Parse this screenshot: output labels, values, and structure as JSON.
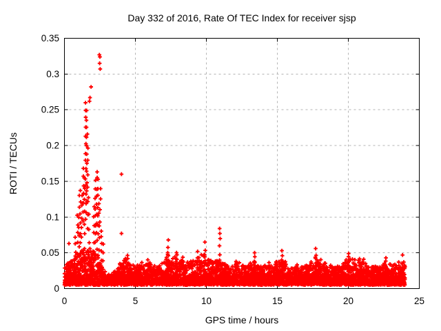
{
  "chart_data": {
    "type": "scatter",
    "title": "Day 332 of 2016, Rate Of TEC Index for receiver sjsp",
    "xlabel": "GPS time / hours",
    "ylabel": "ROTI / TECUs",
    "xlim": [
      0,
      25
    ],
    "ylim": [
      0,
      0.35
    ],
    "xticks": [
      0,
      5,
      10,
      15,
      20,
      25
    ],
    "xtick_labels": [
      "0",
      "5",
      "10",
      "15",
      "20",
      "25"
    ],
    "yticks": [
      0,
      0.05,
      0.1,
      0.15,
      0.2,
      0.25,
      0.3,
      0.35
    ],
    "ytick_labels": [
      "0",
      "0.05",
      "0.1",
      "0.15",
      "0.2",
      "0.25",
      "0.3",
      "0.35"
    ],
    "grid": true,
    "legend": null,
    "marker": "plus",
    "marker_size_px": 7,
    "colors": {
      "marker": "#ff0000",
      "grid": "#b3b3b3",
      "axis": "#000000",
      "text": "#000000",
      "background": "#ffffff"
    },
    "seed": 2016332,
    "series": [
      {
        "name": "ROTI",
        "observed_x_range": [
          0,
          24
        ],
        "baseline_band": {
          "points_per_hour": 210,
          "y_floor": 0.005,
          "shape_power": 2.8
        },
        "envelope_max": [
          [
            0,
            0.032
          ],
          [
            0.6,
            0.038
          ],
          [
            1.0,
            0.05
          ],
          [
            1.6,
            0.055
          ],
          [
            2.3,
            0.05
          ],
          [
            2.7,
            0.025
          ],
          [
            3.1,
            0.018
          ],
          [
            3.6,
            0.025
          ],
          [
            4.3,
            0.04
          ],
          [
            4.9,
            0.03
          ],
          [
            5.5,
            0.035
          ],
          [
            6.0,
            0.035
          ],
          [
            6.6,
            0.028
          ],
          [
            7.3,
            0.045
          ],
          [
            8.0,
            0.04
          ],
          [
            8.6,
            0.035
          ],
          [
            9.2,
            0.04
          ],
          [
            9.8,
            0.045
          ],
          [
            10.4,
            0.035
          ],
          [
            11.0,
            0.04
          ],
          [
            11.6,
            0.026
          ],
          [
            12.2,
            0.035
          ],
          [
            12.8,
            0.03
          ],
          [
            13.4,
            0.038
          ],
          [
            14.0,
            0.028
          ],
          [
            14.6,
            0.032
          ],
          [
            15.3,
            0.04
          ],
          [
            16.0,
            0.026
          ],
          [
            16.7,
            0.03
          ],
          [
            17.3,
            0.033
          ],
          [
            17.8,
            0.042
          ],
          [
            18.5,
            0.032
          ],
          [
            19.2,
            0.028
          ],
          [
            19.9,
            0.038
          ],
          [
            20.7,
            0.038
          ],
          [
            21.4,
            0.03
          ],
          [
            22.0,
            0.028
          ],
          [
            22.7,
            0.034
          ],
          [
            23.3,
            0.03
          ],
          [
            24.0,
            0.036
          ]
        ],
        "spike_columns": [
          [
            0.78,
            0.03,
            0.072,
            5
          ],
          [
            0.92,
            0.035,
            0.105,
            6
          ],
          [
            1.03,
            0.045,
            0.128,
            7
          ],
          [
            1.13,
            0.05,
            0.135,
            7
          ],
          [
            1.22,
            0.055,
            0.13,
            6
          ],
          [
            1.33,
            0.095,
            0.17,
            7
          ],
          [
            1.42,
            0.075,
            0.155,
            6
          ],
          [
            1.5,
            0.095,
            0.262,
            15
          ],
          [
            1.57,
            0.125,
            0.25,
            11
          ],
          [
            1.63,
            0.085,
            0.215,
            8
          ],
          [
            1.72,
            0.045,
            0.125,
            5
          ],
          [
            2.08,
            0.04,
            0.115,
            7
          ],
          [
            2.18,
            0.05,
            0.15,
            9
          ],
          [
            2.28,
            0.055,
            0.165,
            10
          ],
          [
            2.37,
            0.075,
            0.155,
            7
          ],
          [
            2.45,
            0.055,
            0.12,
            5
          ],
          [
            2.52,
            0.095,
            0.142,
            4
          ],
          [
            2.6,
            0.022,
            0.08,
            7
          ],
          [
            2.73,
            0.015,
            0.06,
            5
          ],
          [
            4.45,
            0.018,
            0.046,
            6
          ],
          [
            5.85,
            0.014,
            0.038,
            5
          ],
          [
            7.3,
            0.018,
            0.058,
            8
          ],
          [
            7.9,
            0.016,
            0.052,
            6
          ],
          [
            8.35,
            0.014,
            0.044,
            6
          ],
          [
            9.4,
            0.016,
            0.05,
            7
          ],
          [
            9.9,
            0.016,
            0.054,
            6
          ],
          [
            10.95,
            0.016,
            0.06,
            5
          ],
          [
            12.1,
            0.013,
            0.04,
            5
          ],
          [
            13.4,
            0.013,
            0.044,
            6
          ],
          [
            14.4,
            0.012,
            0.036,
            4
          ],
          [
            15.32,
            0.015,
            0.048,
            6
          ],
          [
            16.4,
            0.011,
            0.033,
            4
          ],
          [
            17.7,
            0.014,
            0.048,
            7
          ],
          [
            18.4,
            0.012,
            0.036,
            4
          ],
          [
            20.0,
            0.013,
            0.044,
            6
          ],
          [
            20.8,
            0.013,
            0.042,
            6
          ],
          [
            21.1,
            0.012,
            0.04,
            5
          ],
          [
            22.65,
            0.013,
            0.038,
            4
          ],
          [
            23.3,
            0.012,
            0.035,
            4
          ]
        ],
        "high_points": [
          [
            2.46,
            0.327
          ],
          [
            2.5,
            0.324
          ],
          [
            2.48,
            0.315
          ],
          [
            2.52,
            0.307
          ],
          [
            1.88,
            0.282
          ],
          [
            1.8,
            0.267
          ],
          [
            1.76,
            0.262
          ],
          [
            4.02,
            0.16
          ],
          [
            4.02,
            0.077
          ],
          [
            0.32,
            0.063
          ],
          [
            7.32,
            0.068
          ],
          [
            9.9,
            0.065
          ],
          [
            10.93,
            0.084
          ],
          [
            10.95,
            0.077
          ],
          [
            10.97,
            0.07
          ],
          [
            13.4,
            0.05
          ],
          [
            15.32,
            0.053
          ],
          [
            17.7,
            0.056
          ],
          [
            20.02,
            0.049
          ],
          [
            22.65,
            0.043
          ],
          [
            23.55,
            0.037
          ],
          [
            23.82,
            0.047
          ]
        ]
      }
    ]
  }
}
